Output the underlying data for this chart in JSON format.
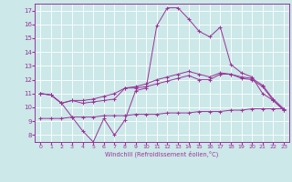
{
  "xlabel": "Windchill (Refroidissement éolien,°C)",
  "background_color": "#cce8e8",
  "grid_color": "#ffffff",
  "line_color": "#993399",
  "xlim": [
    -0.5,
    23.5
  ],
  "ylim": [
    7.5,
    17.5
  ],
  "xticks": [
    0,
    1,
    2,
    3,
    4,
    5,
    6,
    7,
    8,
    9,
    10,
    11,
    12,
    13,
    14,
    15,
    16,
    17,
    18,
    19,
    20,
    21,
    22,
    23
  ],
  "yticks": [
    8,
    9,
    10,
    11,
    12,
    13,
    14,
    15,
    16,
    17
  ],
  "series": [
    {
      "x": [
        0,
        1,
        2,
        3,
        4,
        5,
        6,
        7,
        8,
        9,
        10,
        11,
        12,
        13,
        14,
        15,
        16,
        17,
        18,
        19,
        20,
        21,
        22,
        23
      ],
      "y": [
        11.0,
        10.9,
        10.3,
        10.5,
        10.3,
        10.4,
        10.5,
        10.6,
        11.4,
        11.4,
        11.5,
        11.7,
        11.9,
        12.1,
        12.3,
        12.0,
        12.0,
        12.4,
        12.4,
        12.1,
        12.0,
        11.5,
        10.5,
        9.8
      ]
    },
    {
      "x": [
        0,
        1,
        2,
        3,
        4,
        5,
        6,
        7,
        8,
        9,
        10,
        11,
        12,
        13,
        14,
        15,
        16,
        17,
        18,
        19,
        20,
        21,
        22,
        23
      ],
      "y": [
        11.0,
        10.9,
        10.3,
        10.5,
        10.5,
        10.6,
        10.8,
        11.0,
        11.4,
        11.5,
        11.7,
        12.0,
        12.2,
        12.4,
        12.6,
        12.4,
        12.2,
        12.5,
        12.4,
        12.2,
        12.1,
        11.6,
        10.6,
        9.9
      ]
    },
    {
      "x": [
        0,
        1,
        2,
        3,
        4,
        5,
        6,
        7,
        8,
        9,
        10,
        11,
        12,
        13,
        14,
        15,
        16,
        17,
        18,
        19,
        20,
        21,
        22,
        23
      ],
      "y": [
        11.0,
        10.9,
        10.3,
        9.3,
        8.3,
        7.5,
        9.2,
        8.0,
        9.1,
        11.2,
        11.4,
        15.9,
        17.2,
        17.2,
        16.4,
        15.5,
        15.1,
        15.8,
        13.1,
        12.5,
        12.2,
        11.0,
        10.5,
        9.8
      ]
    },
    {
      "x": [
        0,
        1,
        2,
        3,
        4,
        5,
        6,
        7,
        8,
        9,
        10,
        11,
        12,
        13,
        14,
        15,
        16,
        17,
        18,
        19,
        20,
        21,
        22,
        23
      ],
      "y": [
        9.2,
        9.2,
        9.2,
        9.3,
        9.3,
        9.3,
        9.4,
        9.4,
        9.4,
        9.5,
        9.5,
        9.5,
        9.6,
        9.6,
        9.6,
        9.7,
        9.7,
        9.7,
        9.8,
        9.8,
        9.9,
        9.9,
        9.9,
        9.9
      ]
    }
  ]
}
